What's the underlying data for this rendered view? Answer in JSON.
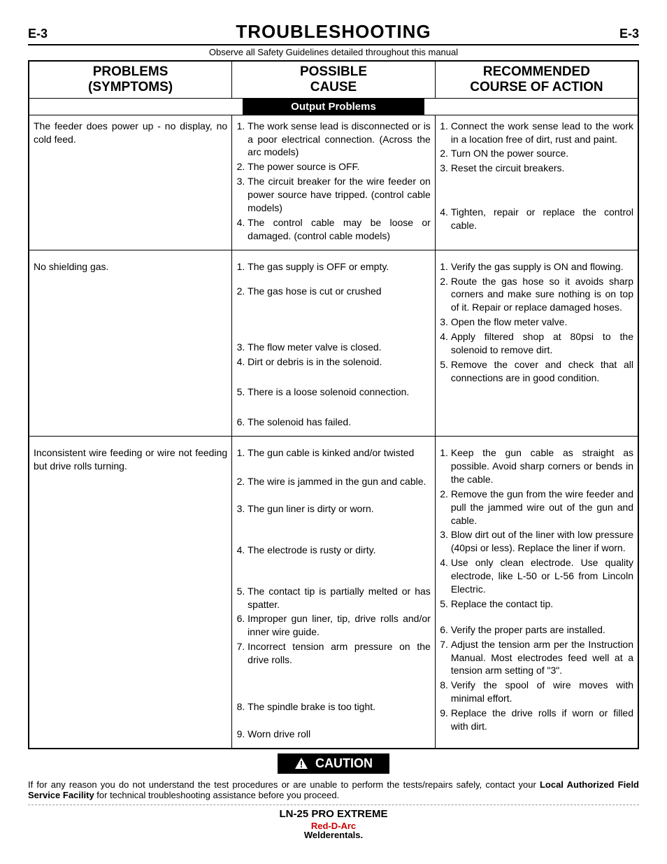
{
  "header": {
    "leftCode": "E-3",
    "title": "TROUBLESHOOTING",
    "rightCode": "E-3",
    "safetyLine": "Observe all Safety Guidelines detailed throughout this manual"
  },
  "tableHeaders": {
    "col1a": "PROBLEMS",
    "col1b": "(SYMPTOMS)",
    "col2a": "POSSIBLE",
    "col2b": "CAUSE",
    "col3a": "RECOMMENDED",
    "col3b": "COURSE OF ACTION"
  },
  "sectionTitle": "Output Problems",
  "rows": [
    {
      "problem": "The feeder does power up - no display, no cold feed.",
      "causes": [
        "The work sense lead is disconnected or is a poor electrical connection.  (Across the arc models)",
        "The power source is OFF.",
        "The circuit breaker for the wire feeder on power source have tripped.  (control cable models)",
        "The control cable may be loose or damaged.  (control cable models)"
      ],
      "actions": [
        "Connect the work sense lead to the work in a location free of dirt, rust and paint.",
        "Turn ON the power source.",
        "Reset the circuit breakers.",
        "Tighten, repair or replace the control cable."
      ],
      "actionSpacing": [
        "0",
        "0",
        "0",
        "44px"
      ]
    },
    {
      "problem": "No shielding gas.",
      "causes": [
        "The gas supply is OFF or empty.",
        "The gas hose is cut or crushed",
        "The flow meter valve is closed.",
        "Dirt or debris is in the solenoid.",
        "There is a loose solenoid connection.",
        "The solenoid has failed."
      ],
      "causeSpacing": [
        "0",
        "16px",
        "62px",
        "0",
        "24px",
        "24px"
      ],
      "actions": [
        "Verify the gas supply is ON and flowing.",
        "Route the gas hose so it avoids sharp corners and make sure nothing is on top of it.  Repair or replace damaged hoses.",
        "Open the flow meter valve.",
        "Apply filtered shop at 80psi to the solenoid to remove dirt.",
        "Remove the cover and check that all connections are in good condition."
      ]
    },
    {
      "problem": "Inconsistent wire feeding or wire not feeding but drive rolls turning.",
      "causes": [
        "The gun cable is kinked and/or twisted",
        "The wire is jammed in the gun and cable.",
        "The gun liner is dirty or worn.",
        "The electrode is rusty or dirty.",
        "The contact tip is partially melted or has spatter.",
        "Improper gun liner, tip, drive rolls and/or inner wire guide.",
        "Incorrect tension arm pressure on the drive rolls.",
        "The spindle brake is too tight.",
        "Worn drive roll"
      ],
      "causeSpacing": [
        "0",
        "22px",
        "20px",
        "40px",
        "40px",
        "0",
        "0",
        "48px",
        "20px"
      ],
      "actions": [
        "Keep the gun cable as straight as possible. Avoid sharp corners or bends in the cable.",
        "Remove the gun from the wire feeder and pull the jammed wire out of the gun and cable.",
        "Blow dirt out of the liner with low pressure (40psi or less). Replace the liner if worn.",
        "Use only clean electrode. Use quality electrode, like L-50 or L-56 from Lincoln Electric.",
        "Replace the contact tip.",
        "Verify the proper parts are installed.",
        "Adjust the tension arm per the Instruction Manual.  Most electrodes feed well at a tension arm setting of \"3\".",
        "Verify the spool of wire moves with minimal effort.",
        "Replace the drive rolls if worn or filled with dirt."
      ],
      "actionSpacing": [
        "0",
        "0",
        "0",
        "0",
        "0",
        "18px",
        "0",
        "0",
        "0"
      ]
    }
  ],
  "cautionLabel": "CAUTION",
  "footer": {
    "text1": "If for any reason you do not understand the test procedures or are unable to perform the tests/repairs safely, contact your ",
    "bold": "Local Authorized Field Service Facility",
    "text2": " for technical troubleshooting assistance before you proceed."
  },
  "model": "LN-25 PRO EXTREME",
  "brand": {
    "line1": "Red-D-Arc",
    "line2": "Welderentals."
  }
}
